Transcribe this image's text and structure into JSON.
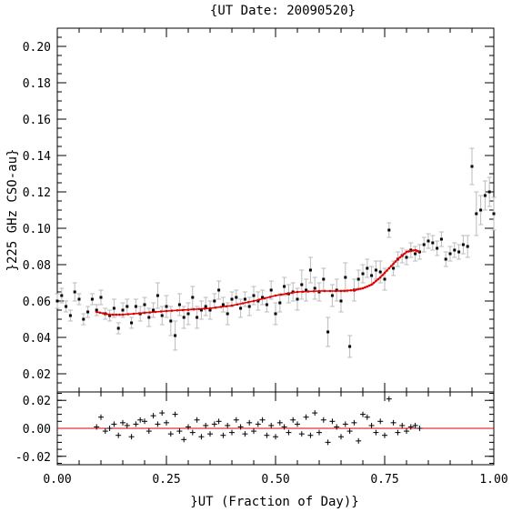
{
  "chart_data": [
    {
      "type": "scatter",
      "title": "{UT Date: 20090520}",
      "ylabel": "}225 GHz CSO-au}",
      "xlim": [
        0.0,
        1.0
      ],
      "ylim": [
        0.01,
        0.21
      ],
      "yticks": [
        "0.02",
        "0.04",
        "0.06",
        "0.08",
        "0.10",
        "0.12",
        "0.14",
        "0.16",
        "0.18",
        "0.20"
      ],
      "grid": false,
      "colors": {
        "points": "#000000",
        "errorbars": "#bbbbbb",
        "fit": "#e00000"
      },
      "series": [
        {
          "kind": "points_with_errorbars",
          "x": [
            0.0,
            0.01,
            0.02,
            0.03,
            0.04,
            0.05,
            0.06,
            0.07,
            0.08,
            0.09,
            0.1,
            0.11,
            0.12,
            0.13,
            0.14,
            0.15,
            0.16,
            0.17,
            0.18,
            0.19,
            0.2,
            0.21,
            0.22,
            0.23,
            0.24,
            0.25,
            0.26,
            0.27,
            0.28,
            0.29,
            0.3,
            0.31,
            0.32,
            0.33,
            0.34,
            0.35,
            0.36,
            0.37,
            0.38,
            0.39,
            0.4,
            0.41,
            0.42,
            0.43,
            0.44,
            0.45,
            0.46,
            0.47,
            0.48,
            0.49,
            0.5,
            0.51,
            0.52,
            0.53,
            0.54,
            0.55,
            0.56,
            0.57,
            0.58,
            0.59,
            0.6,
            0.61,
            0.62,
            0.63,
            0.64,
            0.65,
            0.66,
            0.67,
            0.68,
            0.69,
            0.7,
            0.71,
            0.72,
            0.73,
            0.74,
            0.75,
            0.76,
            0.77,
            0.78,
            0.79,
            0.8,
            0.81,
            0.82,
            0.83,
            0.84,
            0.85,
            0.86,
            0.87,
            0.88,
            0.89,
            0.9,
            0.91,
            0.92,
            0.93,
            0.94,
            0.95,
            0.96,
            0.97,
            0.98,
            0.99,
            1.0
          ],
          "y": [
            0.06,
            0.063,
            0.057,
            0.052,
            0.065,
            0.061,
            0.05,
            0.054,
            0.061,
            0.055,
            0.062,
            0.053,
            0.052,
            0.056,
            0.045,
            0.055,
            0.057,
            0.048,
            0.057,
            0.053,
            0.058,
            0.051,
            0.055,
            0.063,
            0.052,
            0.057,
            0.049,
            0.041,
            0.058,
            0.051,
            0.053,
            0.062,
            0.051,
            0.055,
            0.057,
            0.055,
            0.06,
            0.066,
            0.058,
            0.053,
            0.061,
            0.062,
            0.056,
            0.061,
            0.057,
            0.063,
            0.06,
            0.062,
            0.058,
            0.066,
            0.053,
            0.059,
            0.068,
            0.064,
            0.065,
            0.061,
            0.069,
            0.066,
            0.077,
            0.067,
            0.065,
            0.072,
            0.043,
            0.063,
            0.066,
            0.06,
            0.073,
            0.035,
            0.066,
            0.072,
            0.075,
            0.078,
            0.074,
            0.077,
            0.076,
            0.072,
            0.099,
            0.078,
            0.083,
            0.085,
            0.084,
            0.088,
            0.086,
            0.087,
            0.091,
            0.093,
            0.092,
            0.089,
            0.094,
            0.083,
            0.086,
            0.088,
            0.087,
            0.091,
            0.09,
            0.134,
            0.108,
            0.11,
            0.118,
            0.12,
            0.108
          ],
          "err": [
            0.004,
            0.004,
            0.003,
            0.003,
            0.005,
            0.003,
            0.003,
            0.003,
            0.003,
            0.003,
            0.004,
            0.003,
            0.003,
            0.005,
            0.003,
            0.004,
            0.004,
            0.003,
            0.004,
            0.004,
            0.004,
            0.005,
            0.004,
            0.007,
            0.005,
            0.006,
            0.008,
            0.008,
            0.006,
            0.006,
            0.006,
            0.006,
            0.006,
            0.005,
            0.005,
            0.005,
            0.004,
            0.005,
            0.004,
            0.006,
            0.004,
            0.004,
            0.005,
            0.004,
            0.005,
            0.005,
            0.005,
            0.004,
            0.004,
            0.005,
            0.006,
            0.005,
            0.005,
            0.005,
            0.005,
            0.006,
            0.008,
            0.006,
            0.007,
            0.006,
            0.005,
            0.006,
            0.008,
            0.006,
            0.006,
            0.006,
            0.008,
            0.006,
            0.006,
            0.005,
            0.005,
            0.005,
            0.005,
            0.005,
            0.006,
            0.006,
            0.004,
            0.004,
            0.004,
            0.004,
            0.004,
            0.004,
            0.004,
            0.004,
            0.004,
            0.004,
            0.004,
            0.004,
            0.004,
            0.004,
            0.004,
            0.004,
            0.004,
            0.005,
            0.006,
            0.01,
            0.012,
            0.008,
            0.008,
            0.008,
            0.009
          ]
        },
        {
          "kind": "fit_curve",
          "x": [
            0.09,
            0.12,
            0.15,
            0.2,
            0.25,
            0.3,
            0.35,
            0.4,
            0.45,
            0.5,
            0.55,
            0.6,
            0.65,
            0.68,
            0.7,
            0.72,
            0.74,
            0.76,
            0.78,
            0.8,
            0.82,
            0.83
          ],
          "y": [
            0.054,
            0.0525,
            0.0525,
            0.0535,
            0.0545,
            0.0552,
            0.056,
            0.0575,
            0.06,
            0.063,
            0.065,
            0.0655,
            0.0655,
            0.066,
            0.067,
            0.069,
            0.073,
            0.078,
            0.083,
            0.087,
            0.088,
            0.087
          ]
        }
      ]
    },
    {
      "type": "scatter",
      "title": "",
      "xlabel": "}UT (Fraction of Day)}",
      "xlim": [
        0.0,
        1.0
      ],
      "ylim": [
        -0.026,
        0.026
      ],
      "xticks": [
        "0.00",
        "0.25",
        "0.50",
        "0.75",
        "1.00"
      ],
      "yticks": [
        "0.02",
        "0.00",
        "-0.02"
      ],
      "grid": false,
      "colors": {
        "markers": "#000000",
        "zero_line": "#e00000"
      },
      "series": [
        {
          "kind": "residual_markers",
          "x": [
            0.09,
            0.1,
            0.11,
            0.12,
            0.13,
            0.14,
            0.15,
            0.16,
            0.17,
            0.18,
            0.19,
            0.2,
            0.21,
            0.22,
            0.23,
            0.24,
            0.25,
            0.26,
            0.27,
            0.28,
            0.29,
            0.3,
            0.31,
            0.32,
            0.33,
            0.34,
            0.35,
            0.36,
            0.37,
            0.38,
            0.39,
            0.4,
            0.41,
            0.42,
            0.43,
            0.44,
            0.45,
            0.46,
            0.47,
            0.48,
            0.49,
            0.5,
            0.51,
            0.52,
            0.53,
            0.54,
            0.55,
            0.56,
            0.57,
            0.58,
            0.59,
            0.6,
            0.61,
            0.62,
            0.63,
            0.64,
            0.65,
            0.66,
            0.67,
            0.68,
            0.69,
            0.7,
            0.71,
            0.72,
            0.73,
            0.74,
            0.75,
            0.76,
            0.77,
            0.78,
            0.79,
            0.8,
            0.81,
            0.82,
            0.83
          ],
          "y": [
            0.001,
            0.008,
            -0.002,
            0.0,
            0.003,
            -0.005,
            0.004,
            0.002,
            -0.006,
            0.003,
            0.006,
            0.005,
            -0.002,
            0.009,
            0.003,
            0.011,
            0.004,
            -0.004,
            0.01,
            -0.002,
            -0.008,
            0.001,
            -0.003,
            0.006,
            -0.006,
            0.002,
            -0.004,
            0.003,
            0.005,
            -0.005,
            0.002,
            -0.003,
            0.006,
            0.001,
            -0.004,
            0.004,
            -0.002,
            0.003,
            0.006,
            -0.005,
            0.002,
            -0.006,
            0.004,
            0.001,
            -0.003,
            0.006,
            0.003,
            -0.004,
            0.008,
            -0.005,
            0.011,
            -0.003,
            0.006,
            -0.01,
            0.005,
            0.001,
            -0.006,
            0.003,
            -0.002,
            0.004,
            -0.009,
            0.01,
            0.008,
            0.002,
            -0.003,
            0.005,
            -0.005,
            0.021,
            0.004,
            -0.003,
            0.002,
            -0.002,
            0.001,
            0.002,
            0.0
          ]
        },
        {
          "kind": "zero_line",
          "x": [
            0.0,
            1.0
          ],
          "y": [
            0.0,
            0.0
          ]
        }
      ]
    }
  ]
}
